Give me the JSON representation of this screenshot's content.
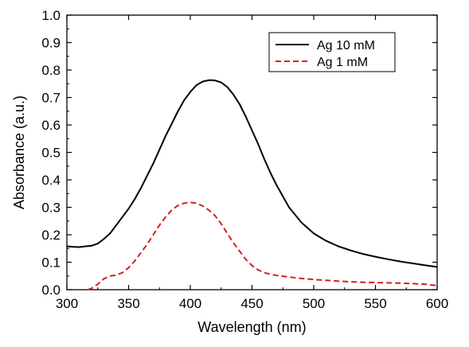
{
  "chart_data": {
    "type": "line",
    "title": "",
    "xlabel": "Wavelength (nm)",
    "ylabel": "Absorbance (a.u.)",
    "xlim": [
      300,
      600
    ],
    "ylim": [
      0.0,
      1.0
    ],
    "xticks": [
      300,
      350,
      400,
      450,
      500,
      550,
      600
    ],
    "xtick_labels": [
      "300",
      "350",
      "400",
      "450",
      "500",
      "550",
      "600"
    ],
    "yticks": [
      0.0,
      0.1,
      0.2,
      0.3,
      0.4,
      0.5,
      0.6,
      0.7,
      0.8,
      0.9,
      1.0
    ],
    "ytick_labels": [
      "0.0",
      "0.1",
      "0.2",
      "0.3",
      "0.4",
      "0.5",
      "0.6",
      "0.7",
      "0.8",
      "0.9",
      "1.0"
    ],
    "grid": false,
    "legend_position": "top-right",
    "series": [
      {
        "name": "Ag 10 mM",
        "color": "#000000",
        "style": "solid",
        "x": [
          300,
          305,
          310,
          315,
          320,
          325,
          330,
          335,
          340,
          345,
          350,
          355,
          360,
          365,
          370,
          375,
          380,
          385,
          390,
          395,
          400,
          405,
          410,
          415,
          418,
          420,
          425,
          430,
          435,
          440,
          445,
          450,
          455,
          460,
          465,
          470,
          475,
          480,
          490,
          500,
          510,
          520,
          530,
          540,
          550,
          560,
          570,
          580,
          590,
          600
        ],
        "y": [
          0.158,
          0.156,
          0.155,
          0.158,
          0.16,
          0.168,
          0.185,
          0.205,
          0.235,
          0.265,
          0.295,
          0.33,
          0.37,
          0.415,
          0.46,
          0.51,
          0.56,
          0.605,
          0.65,
          0.69,
          0.72,
          0.745,
          0.758,
          0.763,
          0.763,
          0.762,
          0.755,
          0.738,
          0.71,
          0.675,
          0.63,
          0.58,
          0.53,
          0.475,
          0.425,
          0.38,
          0.34,
          0.3,
          0.245,
          0.205,
          0.178,
          0.158,
          0.143,
          0.13,
          0.12,
          0.111,
          0.103,
          0.096,
          0.089,
          0.083
        ]
      },
      {
        "name": "Ag 1 mM",
        "color": "#d42020",
        "style": "dashed",
        "x": [
          317,
          320,
          325,
          330,
          335,
          340,
          345,
          350,
          355,
          360,
          365,
          370,
          375,
          380,
          385,
          390,
          395,
          400,
          405,
          410,
          415,
          420,
          425,
          430,
          435,
          440,
          445,
          450,
          455,
          460,
          465,
          470,
          480,
          490,
          500,
          510,
          520,
          530,
          540,
          550,
          560,
          570,
          580,
          590,
          600
        ],
        "y": [
          0.0,
          0.005,
          0.02,
          0.04,
          0.05,
          0.053,
          0.062,
          0.08,
          0.105,
          0.135,
          0.165,
          0.2,
          0.235,
          0.265,
          0.29,
          0.307,
          0.315,
          0.318,
          0.315,
          0.305,
          0.29,
          0.27,
          0.24,
          0.205,
          0.17,
          0.14,
          0.11,
          0.088,
          0.072,
          0.062,
          0.056,
          0.052,
          0.046,
          0.041,
          0.037,
          0.034,
          0.031,
          0.029,
          0.027,
          0.026,
          0.025,
          0.024,
          0.022,
          0.02,
          0.015
        ]
      }
    ]
  }
}
